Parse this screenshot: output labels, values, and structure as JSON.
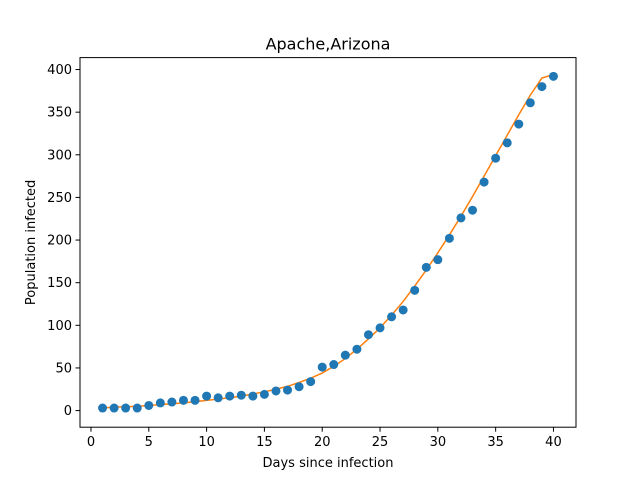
{
  "chart_data": {
    "type": "scatter",
    "title": "Apache,Arizona",
    "xlabel": "Days since infection",
    "ylabel": "Population infected",
    "xlim": [
      -0.95,
      41.95
    ],
    "ylim": [
      -19.5,
      414
    ],
    "xticks": [
      0,
      5,
      10,
      15,
      20,
      25,
      30,
      35,
      40
    ],
    "yticks": [
      0,
      50,
      100,
      150,
      200,
      250,
      300,
      350,
      400
    ],
    "grid": false,
    "colors": {
      "points": "#1f77b4",
      "fit": "#ff7f0e"
    },
    "series": [
      {
        "kind": "scatter",
        "x": [
          1,
          2,
          3,
          4,
          5,
          6,
          7,
          8,
          9,
          10,
          11,
          12,
          13,
          14,
          15,
          16,
          17,
          18,
          19,
          20,
          21,
          22,
          23,
          24,
          25,
          26,
          27,
          28,
          29,
          30,
          31,
          32,
          33,
          34,
          35,
          36,
          37,
          38,
          39,
          40
        ],
        "y": [
          3,
          3,
          3,
          3,
          6,
          9,
          10,
          12,
          12,
          17,
          15,
          17,
          18,
          17,
          19,
          23,
          24,
          28,
          34,
          51,
          54,
          65,
          72,
          89,
          97,
          110,
          118,
          141,
          168,
          177,
          202,
          226,
          235,
          268,
          296,
          314,
          336,
          361,
          380,
          392
        ]
      },
      {
        "kind": "line",
        "x": [
          1,
          2,
          3,
          4,
          5,
          6,
          7,
          8,
          9,
          10,
          11,
          12,
          13,
          14,
          15,
          16,
          17,
          18,
          19,
          20,
          21,
          22,
          23,
          24,
          25,
          26,
          27,
          28,
          29,
          30,
          31,
          32,
          33,
          34,
          35,
          36,
          37,
          38,
          39,
          40
        ],
        "y": [
          3,
          4,
          4.5,
          5,
          6,
          7,
          8,
          9,
          10.5,
          12,
          13.5,
          15,
          17,
          19.5,
          22,
          25,
          28.5,
          33,
          38,
          44,
          52,
          61,
          72,
          84,
          97,
          112,
          128,
          146,
          165,
          185,
          206,
          228,
          251,
          275,
          299,
          323,
          347,
          370,
          390,
          394
        ]
      }
    ]
  }
}
